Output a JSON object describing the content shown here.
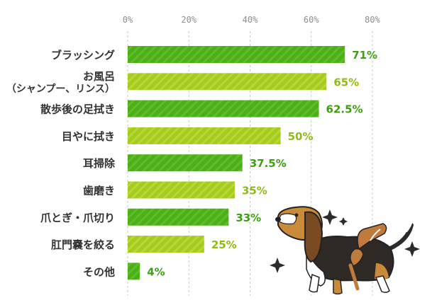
{
  "chart_data": {
    "type": "bar",
    "orientation": "horizontal",
    "xlim": [
      0,
      80
    ],
    "ticks": [
      "0%",
      "20%",
      "40%",
      "60%",
      "80%"
    ],
    "tick_values": [
      0,
      20,
      40,
      60,
      80
    ],
    "grid": "dashed vertical",
    "categories": [
      [
        "ブラッシング"
      ],
      [
        "お風呂",
        "（シャンプー、リンス）"
      ],
      [
        "散歩後の足拭き"
      ],
      [
        "目やに拭き"
      ],
      [
        "耳掃除"
      ],
      [
        "歯磨き"
      ],
      [
        "爪とぎ・爪切り"
      ],
      [
        "肛門嚢を絞る"
      ],
      [
        "その他"
      ]
    ],
    "values": [
      71,
      65,
      62.5,
      50,
      37.5,
      35,
      33,
      25,
      4
    ],
    "value_labels": [
      "71%",
      "65%",
      "62.5%",
      "50%",
      "37.5%",
      "35%",
      "33%",
      "25%",
      "4%"
    ],
    "colors": {
      "dark_bar": "#4caf18",
      "light_bar": "#a5cc1c",
      "dark_label": "#3e9f13",
      "light_label": "#8fbb12",
      "grid": "#c9c9c9",
      "tick_text": "#8c8c8c",
      "category_text": "#333333"
    }
  },
  "illustration": {
    "subject": "dog-icon",
    "accessory": "brush-icon",
    "decoration": "sparkle-icon"
  }
}
